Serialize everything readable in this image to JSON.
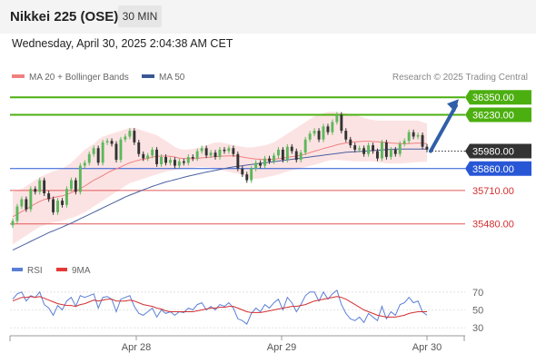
{
  "header": {
    "title": "Nikkei 225 (OSE)",
    "timeframe": "30 MIN"
  },
  "subheader": {
    "datetime": "Wednesday, April 30, 2025 2:04:38 AM CET"
  },
  "legend": {
    "ma20": {
      "label": "MA 20 + Bollinger Bands",
      "color": "#f08080"
    },
    "ma50": {
      "label": "MA 50",
      "color": "#3a5795"
    },
    "rsi": {
      "label": "RSI",
      "color": "#5b7fd6"
    },
    "rsi_ma": {
      "label": "9MA",
      "color": "#e53935"
    }
  },
  "credit": "Research © 2025 Trading Central",
  "chart_data": [
    {
      "type": "candlestick",
      "title": "Nikkei 225 (OSE)",
      "timeframe": "30 MIN",
      "ylim": [
        35260,
        36420
      ],
      "x_ticks": [
        "Apr 28",
        "Apr 29",
        "Apr 30"
      ],
      "current_price": "35980.00",
      "levels": [
        {
          "label": "36350.00",
          "price": 36350,
          "kind": "target"
        },
        {
          "label": "36230.00",
          "price": 36230,
          "kind": "target"
        },
        {
          "label": "35980.00",
          "price": 35980,
          "kind": "current"
        },
        {
          "label": "35860.00",
          "price": 35860,
          "kind": "pivot"
        },
        {
          "label": "35710.00",
          "price": 35710,
          "kind": "support"
        },
        {
          "label": "35480.00",
          "price": 35480,
          "kind": "support"
        }
      ],
      "close": [
        35500,
        35600,
        35650,
        35580,
        35720,
        35700,
        35780,
        35690,
        35650,
        35560,
        35640,
        35610,
        35720,
        35780,
        35700,
        35880,
        35900,
        35960,
        36000,
        35900,
        36040,
        36050,
        36030,
        35920,
        36060,
        36080,
        36120,
        36040,
        35960,
        35930,
        35950,
        35990,
        35890,
        35940,
        35900,
        35920,
        35880,
        35910,
        35900,
        35940,
        35930,
        35980,
        36000,
        35950,
        35970,
        35940,
        35990,
        35980,
        36000,
        35960,
        35860,
        35820,
        35780,
        35860,
        35900,
        35880,
        35930,
        35910,
        35950,
        35990,
        35920,
        36010,
        35980,
        35920,
        35970,
        36060,
        36100,
        36120,
        36060,
        36150,
        36110,
        36180,
        36230,
        36120,
        36060,
        36020,
        35990,
        36000,
        35960,
        36020,
        35980,
        35930,
        36040,
        35940,
        35990,
        35960,
        36030,
        36050,
        36110,
        36080,
        36090,
        36010,
        35990
      ],
      "ma20": [
        35530,
        35545,
        35565,
        35580,
        35600,
        35618,
        35635,
        35648,
        35655,
        35660,
        35668,
        35672,
        35682,
        35695,
        35705,
        35722,
        35740,
        35760,
        35780,
        35795,
        35812,
        35830,
        35846,
        35858,
        35872,
        35886,
        35900,
        35910,
        35918,
        35925,
        35930,
        35940,
        35944,
        35946,
        35946,
        35944,
        35940,
        35932,
        35930,
        35930,
        35928,
        35930,
        35934,
        35936,
        35940,
        35942,
        35944,
        35946,
        35948,
        35948,
        35944,
        35940,
        35934,
        35930,
        35926,
        35924,
        35922,
        35922,
        35924,
        35928,
        35932,
        35938,
        35942,
        35946,
        35952,
        35960,
        35970,
        35980,
        35988,
        35998,
        36006,
        36014,
        36024,
        36030,
        36036,
        36040,
        36044,
        36046,
        36048,
        36048,
        36046,
        36044,
        36042,
        36040,
        36036,
        36034,
        36032,
        36030,
        36032,
        36034,
        36036,
        36034,
        36030
      ],
      "ma50": [
        35300,
        35315,
        35330,
        35345,
        35360,
        35375,
        35390,
        35405,
        35420,
        35432,
        35445,
        35458,
        35472,
        35485,
        35500,
        35515,
        35530,
        35545,
        35560,
        35575,
        35590,
        35605,
        35620,
        35635,
        35650,
        35665,
        35678,
        35690,
        35702,
        35714,
        35726,
        35738,
        35748,
        35758,
        35768,
        35776,
        35784,
        35792,
        35800,
        35808,
        35815,
        35822,
        35829,
        35836,
        35842,
        35848,
        35854,
        35860,
        35866,
        35872,
        35876,
        35880,
        35884,
        35888,
        35892,
        35896,
        35900,
        35904,
        35908,
        35912,
        35916,
        35920,
        35924,
        35928,
        35932,
        35936,
        35940,
        35944,
        35948,
        35952,
        35956,
        35960,
        35964,
        35968,
        35972,
        35974,
        35976,
        35978,
        35980,
        35982,
        35984,
        35986,
        35988,
        35990,
        35992,
        35994,
        35994,
        35994,
        35994,
        35994,
        35994,
        35994,
        35994
      ],
      "bb_upper": [
        35700,
        35710,
        35720,
        35740,
        35760,
        35780,
        35800,
        35815,
        35830,
        35842,
        35850,
        35860,
        35880,
        35900,
        35930,
        35960,
        35990,
        36010,
        36030,
        36060,
        36080,
        36090,
        36100,
        36110,
        36120,
        36130,
        36140,
        36140,
        36130,
        36120,
        36110,
        36100,
        36090,
        36070,
        36050,
        36030,
        36010,
        35995,
        35990,
        35992,
        35995,
        36000,
        36010,
        36020,
        36030,
        36040,
        36040,
        36035,
        36030,
        36020,
        36015,
        36010,
        36005,
        36005,
        36010,
        36015,
        36020,
        36030,
        36040,
        36060,
        36080,
        36100,
        36120,
        36140,
        36160,
        36180,
        36200,
        36220,
        36230,
        36240,
        36250,
        36250,
        36250,
        36245,
        36240,
        36235,
        36230,
        36220,
        36210,
        36200,
        36195,
        36190,
        36190,
        36190,
        36190,
        36190,
        36190,
        36190,
        36190,
        36190,
        36190,
        36180,
        36170
      ],
      "bb_lower": [
        35340,
        35360,
        35380,
        35400,
        35420,
        35440,
        35460,
        35470,
        35480,
        35490,
        35495,
        35500,
        35510,
        35520,
        35530,
        35545,
        35560,
        35580,
        35600,
        35620,
        35640,
        35660,
        35680,
        35700,
        35720,
        35740,
        35760,
        35770,
        35780,
        35790,
        35800,
        35810,
        35820,
        35830,
        35840,
        35845,
        35850,
        35855,
        35860,
        35862,
        35865,
        35870,
        35872,
        35870,
        35866,
        35860,
        35852,
        35845,
        35838,
        35830,
        35825,
        35815,
        35800,
        35790,
        35790,
        35793,
        35798,
        35806,
        35812,
        35820,
        35830,
        35840,
        35848,
        35856,
        35862,
        35870,
        35878,
        35886,
        35895,
        35905,
        35915,
        35920,
        35920,
        35918,
        35915,
        35912,
        35910,
        35910,
        35910,
        35910,
        35910,
        35905,
        35900,
        35897,
        35895,
        35895,
        35895,
        35897,
        35900,
        35903,
        35905,
        35906,
        35906
      ],
      "forecast_arrow": {
        "from_price": 35980,
        "to_price": 36350
      }
    },
    {
      "type": "line",
      "title": "RSI",
      "ylim": [
        20,
        80
      ],
      "y_ticks": [
        "70",
        "50",
        "30"
      ],
      "series": [
        {
          "name": "RSI",
          "values": [
            62,
            68,
            70,
            60,
            66,
            64,
            70,
            56,
            52,
            44,
            55,
            50,
            60,
            64,
            54,
            66,
            64,
            66,
            68,
            52,
            64,
            65,
            62,
            48,
            62,
            64,
            66,
            54,
            46,
            44,
            48,
            52,
            42,
            50,
            46,
            48,
            44,
            48,
            47,
            52,
            50,
            56,
            58,
            50,
            54,
            50,
            56,
            54,
            58,
            52,
            40,
            38,
            34,
            46,
            52,
            48,
            56,
            52,
            58,
            62,
            50,
            64,
            58,
            48,
            56,
            66,
            70,
            70,
            60,
            70,
            62,
            68,
            72,
            56,
            46,
            40,
            38,
            42,
            36,
            46,
            42,
            38,
            54,
            40,
            48,
            44,
            56,
            58,
            64,
            58,
            60,
            48,
            44
          ]
        },
        {
          "name": "9MA",
          "values": [
            60,
            62,
            64,
            64,
            65,
            64,
            65,
            63,
            61,
            59,
            57,
            56,
            55,
            55,
            54,
            56,
            57,
            59,
            61,
            60,
            61,
            62,
            62,
            60,
            60,
            60,
            61,
            60,
            58,
            56,
            55,
            54,
            52,
            51,
            49,
            48,
            48,
            48,
            48,
            48,
            48,
            49,
            50,
            51,
            52,
            52,
            53,
            53,
            54,
            54,
            52,
            50,
            48,
            47,
            47,
            47,
            48,
            49,
            50,
            51,
            52,
            53,
            54,
            54,
            55,
            56,
            58,
            60,
            61,
            62,
            63,
            64,
            65,
            64,
            62,
            59,
            56,
            53,
            50,
            48,
            46,
            44,
            43,
            42,
            42,
            42,
            43,
            44,
            46,
            47,
            48,
            48,
            48
          ]
        }
      ]
    }
  ]
}
